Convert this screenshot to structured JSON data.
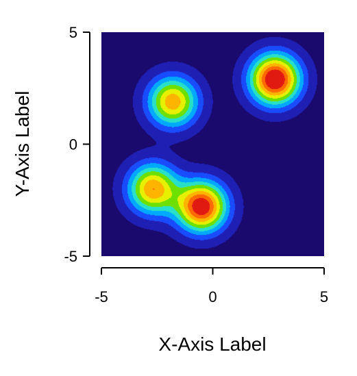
{
  "chart_data": {
    "type": "heatmap",
    "title": "",
    "xlabel": "X-Axis Label",
    "ylabel": "Y-Axis Label",
    "xlim": [
      -5,
      5
    ],
    "ylim": [
      -5,
      5
    ],
    "x_ticks": [
      -5,
      0,
      5
    ],
    "y_ticks": [
      -5,
      0,
      5
    ],
    "x_tick_labels": [
      "-5",
      "0",
      "5"
    ],
    "y_tick_labels": [
      "-5",
      "0",
      "5"
    ],
    "colormap": "jet-like filled contour (navy → blue → cyan → green → yellow → orange → red)",
    "colors": [
      "#1a0a6e",
      "#1f1fb4",
      "#1a4cff",
      "#00a8ff",
      "#28e0c8",
      "#6ee000",
      "#e6f000",
      "#ffb400",
      "#ff6a00",
      "#e01a10"
    ],
    "background_value": 0.05,
    "peaks": [
      {
        "x": 2.8,
        "y": 2.9,
        "intensity": 1.0
      },
      {
        "x": -0.5,
        "y": -2.8,
        "intensity": 0.95
      },
      {
        "x": -1.8,
        "y": 1.9,
        "intensity": 0.72
      },
      {
        "x": -2.7,
        "y": -2.0,
        "intensity": 0.74
      }
    ],
    "grid": false,
    "legend": "none"
  }
}
